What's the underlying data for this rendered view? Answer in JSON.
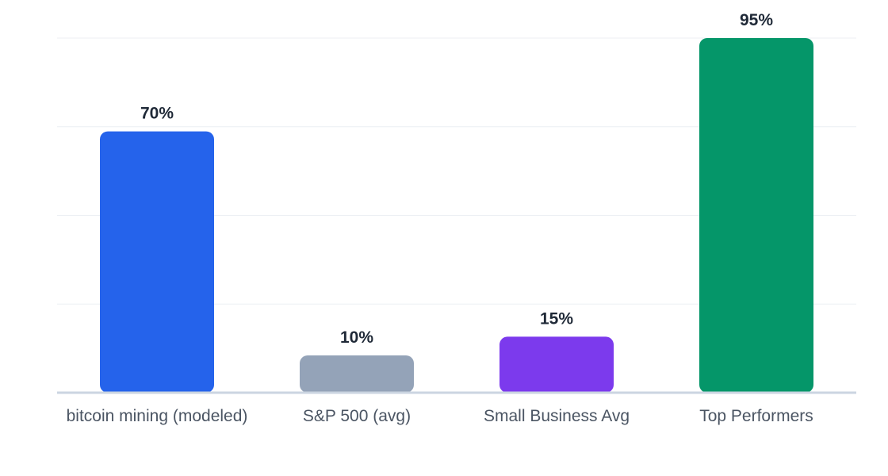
{
  "chart_data": {
    "type": "bar",
    "categories": [
      "bitcoin mining (modeled)",
      "S&P 500 (avg)",
      "Small Business Avg",
      "Top Performers"
    ],
    "values": [
      70,
      10,
      15,
      95
    ],
    "value_labels": [
      "70%",
      "10%",
      "15%",
      "95%"
    ],
    "colors": [
      "#2563eb",
      "#94a3b8",
      "#7c3aed",
      "#059669"
    ],
    "ylim": [
      0,
      95
    ],
    "grid": true,
    "title": "",
    "xlabel": "",
    "ylabel": ""
  }
}
